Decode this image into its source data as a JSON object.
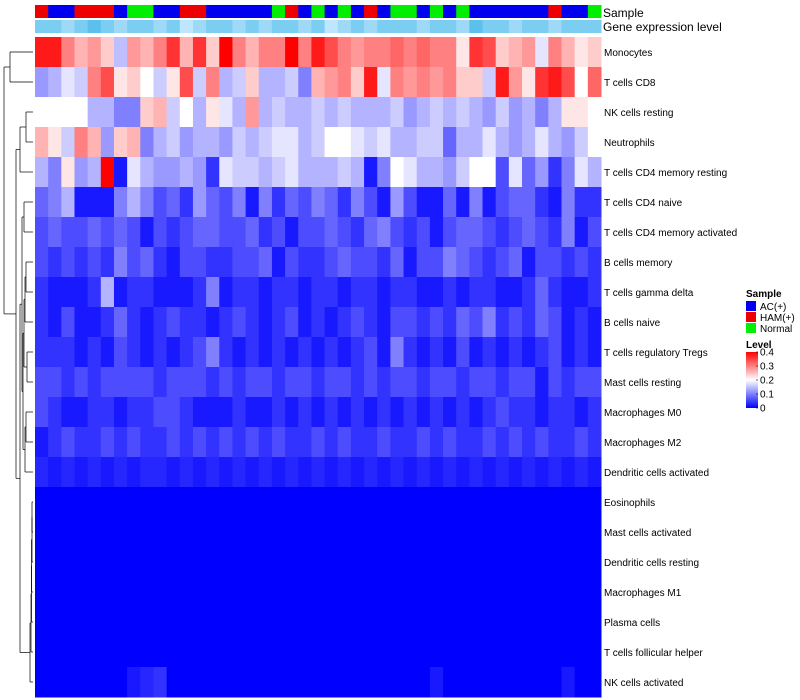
{
  "chart_data": {
    "type": "heatmap",
    "title": "",
    "annotation_labels": {
      "sample": "Sample",
      "gene_expression": "Gene expression level"
    },
    "sample_colors": {
      "AC(+)": "#0000EE",
      "HAM(+)": "#EE0000",
      "Normal": "#00EE00"
    },
    "samples": [
      "HAM(+)",
      "AC(+)",
      "AC(+)",
      "HAM(+)",
      "HAM(+)",
      "HAM(+)",
      "AC(+)",
      "Normal",
      "Normal",
      "AC(+)",
      "AC(+)",
      "HAM(+)",
      "HAM(+)",
      "AC(+)",
      "AC(+)",
      "AC(+)",
      "AC(+)",
      "AC(+)",
      "Normal",
      "HAM(+)",
      "AC(+)",
      "Normal",
      "AC(+)",
      "Normal",
      "AC(+)",
      "HAM(+)",
      "AC(+)",
      "Normal",
      "Normal",
      "AC(+)",
      "Normal",
      "AC(+)",
      "Normal",
      "AC(+)",
      "AC(+)",
      "AC(+)",
      "AC(+)",
      "AC(+)",
      "AC(+)",
      "HAM(+)",
      "AC(+)",
      "AC(+)",
      "Normal"
    ],
    "gene_expression_levels": [
      0.6,
      0.6,
      0.55,
      0.6,
      0.65,
      0.6,
      0.55,
      0.6,
      0.6,
      0.55,
      0.6,
      0.5,
      0.55,
      0.6,
      0.6,
      0.55,
      0.6,
      0.55,
      0.6,
      0.6,
      0.55,
      0.6,
      0.5,
      0.55,
      0.6,
      0.55,
      0.6,
      0.6,
      0.6,
      0.55,
      0.6,
      0.6,
      0.55,
      0.65,
      0.6,
      0.6,
      0.55,
      0.6,
      0.6,
      0.55,
      0.6,
      0.6,
      0.6
    ],
    "rows": [
      "Monocytes",
      "T cells CD8",
      "NK cells resting",
      "Neutrophils",
      "T cells CD4 memory resting",
      "T cells CD4 naive",
      "T cells CD4 memory activated",
      "B cells memory",
      "T cells gamma delta",
      "B cells naive",
      "T cells regulatory  Tregs",
      "Mast cells resting",
      "Macrophages M0",
      "Macrophages M2",
      "Dendritic cells activated",
      "Eosinophils",
      "Mast cells activated",
      "Dendritic cells resting",
      "Macrophages M1",
      "Plasma cells",
      "T cells follicular helper",
      "NK cells activated"
    ],
    "values": [
      [
        0.38,
        0.38,
        0.3,
        0.26,
        0.28,
        0.24,
        0.15,
        0.28,
        0.26,
        0.3,
        0.36,
        0.26,
        0.36,
        0.24,
        0.4,
        0.3,
        0.26,
        0.3,
        0.3,
        0.4,
        0.3,
        0.38,
        0.34,
        0.3,
        0.28,
        0.3,
        0.3,
        0.32,
        0.3,
        0.32,
        0.3,
        0.3,
        0.22,
        0.36,
        0.34,
        0.24,
        0.26,
        0.28,
        0.18,
        0.3,
        0.26,
        0.22,
        0.24
      ],
      [
        0.12,
        0.14,
        0.18,
        0.16,
        0.3,
        0.34,
        0.22,
        0.24,
        0.2,
        0.16,
        0.22,
        0.34,
        0.16,
        0.3,
        0.14,
        0.16,
        0.24,
        0.14,
        0.14,
        0.16,
        0.1,
        0.26,
        0.28,
        0.3,
        0.24,
        0.38,
        0.18,
        0.3,
        0.28,
        0.3,
        0.28,
        0.3,
        0.24,
        0.24,
        0.16,
        0.38,
        0.28,
        0.22,
        0.36,
        0.38,
        0.34,
        0.2,
        0.32
      ],
      [
        0.2,
        0.2,
        0.2,
        0.2,
        0.14,
        0.14,
        0.1,
        0.1,
        0.24,
        0.26,
        0.16,
        0.2,
        0.14,
        0.22,
        0.18,
        0.14,
        0.28,
        0.14,
        0.16,
        0.14,
        0.14,
        0.16,
        0.14,
        0.16,
        0.14,
        0.14,
        0.14,
        0.16,
        0.12,
        0.14,
        0.16,
        0.14,
        0.16,
        0.14,
        0.12,
        0.16,
        0.12,
        0.14,
        0.1,
        0.14,
        0.22,
        0.22,
        0.2
      ],
      [
        0.26,
        0.22,
        0.16,
        0.3,
        0.26,
        0.12,
        0.24,
        0.26,
        0.1,
        0.14,
        0.16,
        0.12,
        0.14,
        0.14,
        0.12,
        0.16,
        0.14,
        0.16,
        0.18,
        0.18,
        0.14,
        0.16,
        0.2,
        0.2,
        0.18,
        0.16,
        0.18,
        0.14,
        0.14,
        0.16,
        0.16,
        0.08,
        0.14,
        0.14,
        0.18,
        0.14,
        0.12,
        0.14,
        0.18,
        0.14,
        0.12,
        0.16,
        0.2
      ],
      [
        0.14,
        0.1,
        0.22,
        0.12,
        0.14,
        0.4,
        0.02,
        0.18,
        0.14,
        0.12,
        0.12,
        0.14,
        0.12,
        0.04,
        0.18,
        0.16,
        0.16,
        0.14,
        0.16,
        0.18,
        0.14,
        0.14,
        0.14,
        0.16,
        0.14,
        0.02,
        0.1,
        0.2,
        0.18,
        0.14,
        0.14,
        0.12,
        0.16,
        0.2,
        0.2,
        0.06,
        0.18,
        0.08,
        0.12,
        0.04,
        0.1,
        0.18,
        0.14
      ],
      [
        0.08,
        0.1,
        0.14,
        0.02,
        0.02,
        0.02,
        0.1,
        0.14,
        0.1,
        0.06,
        0.08,
        0.04,
        0.12,
        0.08,
        0.06,
        0.1,
        0.02,
        0.1,
        0.04,
        0.08,
        0.06,
        0.1,
        0.08,
        0.04,
        0.1,
        0.06,
        0.02,
        0.12,
        0.06,
        0.02,
        0.02,
        0.08,
        0.02,
        0.1,
        0.02,
        0.06,
        0.08,
        0.08,
        0.04,
        0.02,
        0.1,
        0.04,
        0.04
      ],
      [
        0.06,
        0.08,
        0.06,
        0.06,
        0.08,
        0.06,
        0.08,
        0.06,
        0.02,
        0.06,
        0.04,
        0.06,
        0.08,
        0.08,
        0.06,
        0.06,
        0.08,
        0.04,
        0.06,
        0.02,
        0.06,
        0.06,
        0.08,
        0.06,
        0.04,
        0.08,
        0.1,
        0.06,
        0.04,
        0.06,
        0.02,
        0.06,
        0.08,
        0.08,
        0.06,
        0.04,
        0.06,
        0.08,
        0.06,
        0.04,
        0.1,
        0.02,
        0.06
      ],
      [
        0.06,
        0.04,
        0.06,
        0.04,
        0.06,
        0.04,
        0.1,
        0.06,
        0.08,
        0.04,
        0.02,
        0.06,
        0.06,
        0.04,
        0.04,
        0.06,
        0.06,
        0.08,
        0.02,
        0.06,
        0.04,
        0.04,
        0.06,
        0.08,
        0.06,
        0.06,
        0.04,
        0.08,
        0.02,
        0.06,
        0.06,
        0.1,
        0.08,
        0.06,
        0.04,
        0.06,
        0.08,
        0.02,
        0.06,
        0.06,
        0.04,
        0.06,
        0.04
      ],
      [
        0.04,
        0.02,
        0.02,
        0.02,
        0.04,
        0.14,
        0.02,
        0.04,
        0.04,
        0.02,
        0.02,
        0.02,
        0.04,
        0.1,
        0.02,
        0.04,
        0.04,
        0.02,
        0.04,
        0.04,
        0.02,
        0.04,
        0.04,
        0.02,
        0.04,
        0.04,
        0.02,
        0.04,
        0.04,
        0.02,
        0.02,
        0.04,
        0.02,
        0.04,
        0.04,
        0.02,
        0.02,
        0.04,
        0.08,
        0.04,
        0.02,
        0.02,
        0.04
      ],
      [
        0.04,
        0.02,
        0.06,
        0.02,
        0.02,
        0.04,
        0.08,
        0.04,
        0.02,
        0.04,
        0.06,
        0.04,
        0.04,
        0.02,
        0.04,
        0.06,
        0.04,
        0.02,
        0.04,
        0.06,
        0.02,
        0.04,
        0.02,
        0.04,
        0.06,
        0.04,
        0.02,
        0.06,
        0.06,
        0.04,
        0.06,
        0.04,
        0.08,
        0.06,
        0.1,
        0.04,
        0.06,
        0.04,
        0.08,
        0.06,
        0.02,
        0.04,
        0.02
      ],
      [
        0.04,
        0.04,
        0.04,
        0.02,
        0.04,
        0.02,
        0.06,
        0.04,
        0.02,
        0.04,
        0.02,
        0.04,
        0.06,
        0.1,
        0.04,
        0.02,
        0.04,
        0.02,
        0.04,
        0.02,
        0.04,
        0.02,
        0.04,
        0.02,
        0.04,
        0.06,
        0.02,
        0.1,
        0.04,
        0.02,
        0.04,
        0.02,
        0.06,
        0.02,
        0.04,
        0.02,
        0.04,
        0.02,
        0.04,
        0.06,
        0.02,
        0.04,
        0.02
      ],
      [
        0.06,
        0.06,
        0.04,
        0.06,
        0.04,
        0.06,
        0.06,
        0.06,
        0.06,
        0.04,
        0.06,
        0.06,
        0.06,
        0.04,
        0.06,
        0.04,
        0.06,
        0.06,
        0.04,
        0.06,
        0.06,
        0.04,
        0.06,
        0.06,
        0.04,
        0.06,
        0.04,
        0.06,
        0.06,
        0.04,
        0.06,
        0.06,
        0.04,
        0.06,
        0.06,
        0.04,
        0.06,
        0.06,
        0.02,
        0.06,
        0.04,
        0.06,
        0.06
      ],
      [
        0.06,
        0.04,
        0.02,
        0.02,
        0.04,
        0.04,
        0.02,
        0.04,
        0.04,
        0.06,
        0.06,
        0.04,
        0.02,
        0.02,
        0.02,
        0.04,
        0.02,
        0.02,
        0.04,
        0.02,
        0.04,
        0.02,
        0.04,
        0.02,
        0.04,
        0.02,
        0.04,
        0.02,
        0.04,
        0.02,
        0.04,
        0.02,
        0.04,
        0.02,
        0.04,
        0.06,
        0.04,
        0.04,
        0.02,
        0.04,
        0.04,
        0.02,
        0.04
      ],
      [
        0.02,
        0.04,
        0.06,
        0.04,
        0.04,
        0.06,
        0.04,
        0.06,
        0.04,
        0.04,
        0.06,
        0.04,
        0.06,
        0.04,
        0.06,
        0.04,
        0.06,
        0.04,
        0.06,
        0.04,
        0.04,
        0.06,
        0.04,
        0.06,
        0.04,
        0.04,
        0.06,
        0.04,
        0.04,
        0.06,
        0.04,
        0.06,
        0.04,
        0.04,
        0.06,
        0.04,
        0.06,
        0.04,
        0.06,
        0.04,
        0.04,
        0.06,
        0.04
      ],
      [
        0.03,
        0.02,
        0.03,
        0.02,
        0.03,
        0.02,
        0.03,
        0.02,
        0.03,
        0.03,
        0.02,
        0.03,
        0.02,
        0.03,
        0.02,
        0.03,
        0.02,
        0.03,
        0.02,
        0.03,
        0.02,
        0.03,
        0.02,
        0.03,
        0.02,
        0.03,
        0.02,
        0.03,
        0.02,
        0.03,
        0.02,
        0.03,
        0.02,
        0.03,
        0.02,
        0.03,
        0.02,
        0.03,
        0.02,
        0.03,
        0.02,
        0.03,
        0.02
      ],
      [
        0,
        0,
        0,
        0,
        0,
        0,
        0,
        0,
        0,
        0,
        0,
        0,
        0,
        0,
        0,
        0,
        0,
        0,
        0,
        0,
        0,
        0,
        0,
        0,
        0,
        0,
        0,
        0,
        0,
        0,
        0,
        0,
        0,
        0,
        0,
        0,
        0,
        0,
        0,
        0,
        0,
        0,
        0
      ],
      [
        0,
        0,
        0,
        0,
        0,
        0,
        0,
        0,
        0,
        0,
        0,
        0,
        0,
        0,
        0,
        0,
        0,
        0,
        0,
        0,
        0,
        0,
        0,
        0,
        0,
        0,
        0,
        0,
        0,
        0,
        0,
        0,
        0,
        0,
        0,
        0,
        0,
        0,
        0,
        0,
        0,
        0,
        0
      ],
      [
        0,
        0,
        0,
        0,
        0,
        0,
        0,
        0,
        0,
        0,
        0,
        0,
        0,
        0,
        0,
        0,
        0,
        0,
        0,
        0,
        0,
        0,
        0,
        0,
        0,
        0,
        0,
        0,
        0,
        0,
        0,
        0,
        0,
        0,
        0,
        0,
        0,
        0,
        0,
        0,
        0,
        0,
        0
      ],
      [
        0,
        0,
        0,
        0,
        0,
        0,
        0,
        0,
        0,
        0,
        0,
        0,
        0,
        0,
        0,
        0,
        0,
        0,
        0,
        0,
        0,
        0,
        0,
        0,
        0,
        0,
        0,
        0,
        0,
        0,
        0,
        0,
        0,
        0,
        0,
        0,
        0,
        0,
        0,
        0,
        0,
        0,
        0
      ],
      [
        0,
        0,
        0,
        0,
        0,
        0,
        0,
        0,
        0,
        0,
        0,
        0,
        0,
        0,
        0,
        0,
        0,
        0,
        0,
        0,
        0,
        0,
        0,
        0,
        0,
        0,
        0,
        0,
        0,
        0,
        0,
        0,
        0,
        0,
        0,
        0,
        0,
        0,
        0,
        0,
        0,
        0,
        0
      ],
      [
        0,
        0,
        0,
        0,
        0,
        0,
        0,
        0,
        0,
        0,
        0,
        0,
        0,
        0,
        0,
        0,
        0,
        0,
        0,
        0,
        0,
        0,
        0,
        0,
        0,
        0,
        0,
        0,
        0,
        0,
        0,
        0,
        0,
        0,
        0,
        0,
        0,
        0,
        0,
        0,
        0,
        0,
        0
      ],
      [
        0,
        0,
        0,
        0,
        0,
        0,
        0,
        0.02,
        0.03,
        0.04,
        0,
        0,
        0,
        0,
        0,
        0,
        0,
        0,
        0,
        0,
        0,
        0,
        0,
        0,
        0,
        0,
        0,
        0,
        0,
        0,
        0.02,
        0,
        0,
        0,
        0,
        0,
        0,
        0,
        0,
        0,
        0.02,
        0,
        0
      ]
    ],
    "legend": {
      "sample_title": "Sample",
      "sample_entries": [
        "AC(+)",
        "HAM(+)",
        "Normal"
      ],
      "level_title": "Level",
      "level_ticks": [
        0.4,
        0.3,
        0.2,
        0.1,
        0
      ],
      "level_range": [
        0,
        0.4
      ]
    },
    "colors": {
      "low": "#0000FF",
      "mid": "#FFFFFF",
      "high": "#FF0000",
      "gene_low": "#BFE6FF",
      "gene_high": "#5BC0EB"
    }
  }
}
